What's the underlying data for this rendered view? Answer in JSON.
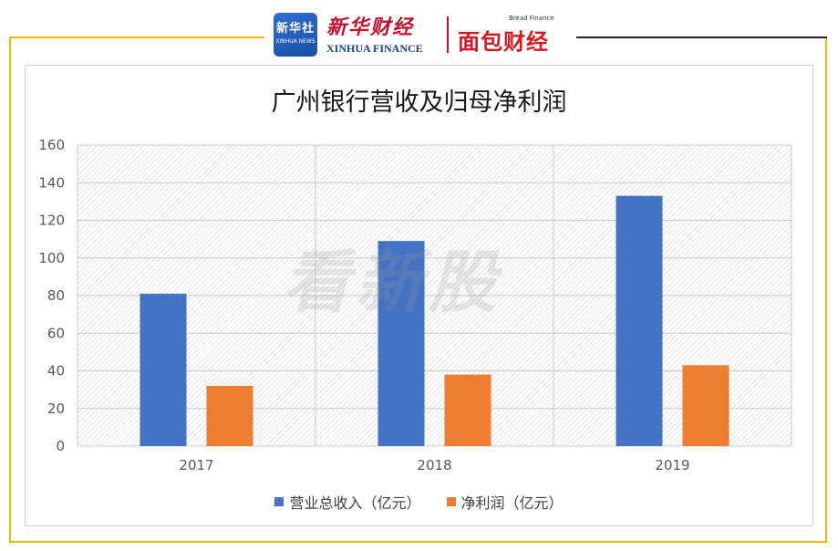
{
  "header": {
    "logo_xinhuashe_cn": "新华社",
    "logo_xinhuashe_en": "XINHUA NEWS",
    "logo_xinhua_finance_cn": "新华财经",
    "logo_xinhua_finance_en": "XINHUA FINANCE",
    "logo_bread_cn": "面包财经",
    "logo_bread_en": "Bread Finance"
  },
  "watermark": "看新股",
  "colors": {
    "frame": "#f2b705",
    "series_revenue": "#4472c4",
    "series_profit": "#ed7d31"
  },
  "chart_data": {
    "type": "bar",
    "title": "广州银行营收及归母净利润",
    "categories": [
      "2017",
      "2018",
      "2019"
    ],
    "series": [
      {
        "name": "营业总收入（亿元）",
        "color": "#4472c4",
        "values": [
          81,
          109,
          133
        ]
      },
      {
        "name": "净利润（亿元）",
        "color": "#ed7d31",
        "values": [
          32,
          38,
          43
        ]
      }
    ],
    "ylim": [
      0,
      160
    ],
    "yticks": [
      0,
      20,
      40,
      60,
      80,
      100,
      120,
      140,
      160
    ],
    "grid": true,
    "legend_position": "bottom",
    "xlabel": "",
    "ylabel": ""
  }
}
